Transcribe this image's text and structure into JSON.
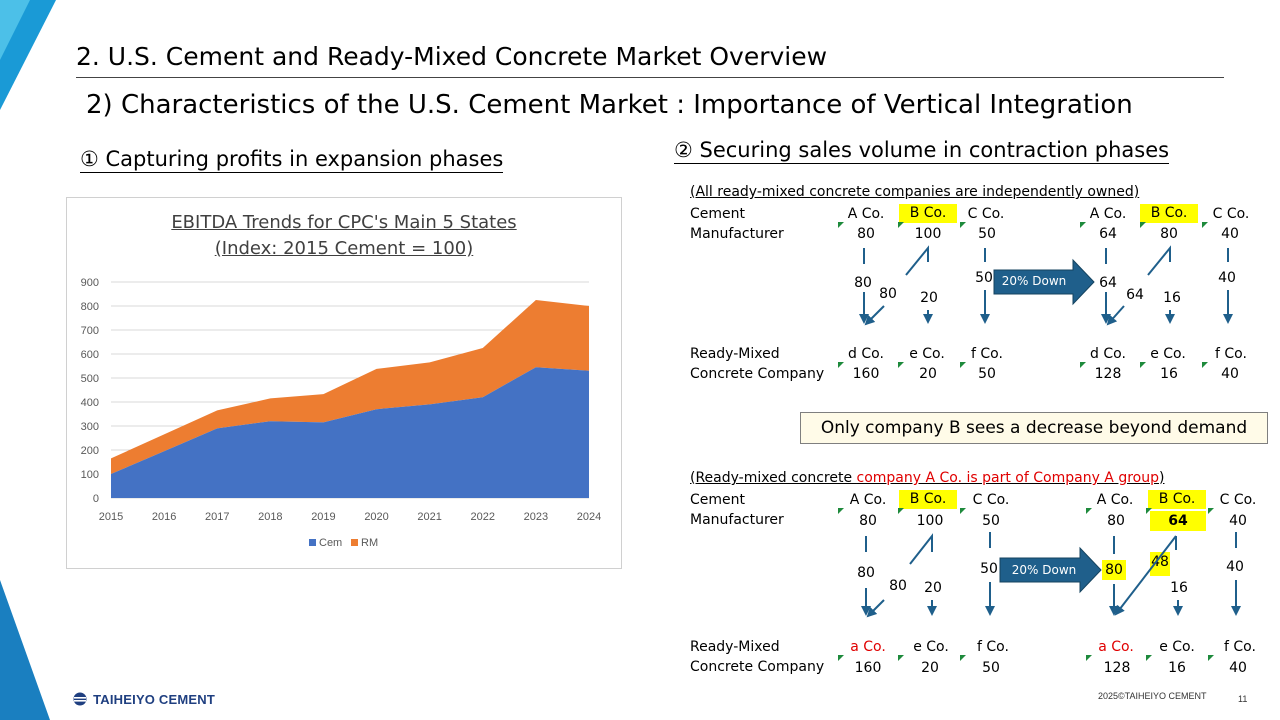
{
  "slide": {
    "title": "2. U.S. Cement and Ready-Mixed Concrete Market Overview",
    "subtitle": "2) Characteristics of the U.S. Cement Market : Importance of Vertical Integration",
    "section1": "① Capturing profits in expansion phases",
    "section2": "② Securing sales volume in contraction phases",
    "page_number": "11",
    "copyright": "2025©TAIHEIYO CEMENT",
    "logo_text": "TAIHEIYO CEMENT"
  },
  "colors": {
    "cem": "#4472c4",
    "rm": "#ed7d31",
    "arrow": "#1f5f8b",
    "highlight": "#ffff00",
    "accent_red": "#e00000"
  },
  "chart_data": {
    "type": "area",
    "title": "EBITDA Trends for CPC's Main 5 States",
    "subtitle": "(Index: 2015 Cement = 100)",
    "x": [
      "2015",
      "2016",
      "2017",
      "2018",
      "2019",
      "2020",
      "2021",
      "2022",
      "2023",
      "2024"
    ],
    "stacked": true,
    "series": [
      {
        "name": "Cem",
        "values": [
          100,
          195,
          290,
          320,
          315,
          370,
          390,
          420,
          545,
          530
        ]
      },
      {
        "name": "RM",
        "values": [
          65,
          70,
          75,
          95,
          118,
          168,
          175,
          205,
          280,
          270
        ]
      }
    ],
    "ylim": [
      0,
      900
    ],
    "yticks": [
      0,
      100,
      200,
      300,
      400,
      500,
      600,
      700,
      800,
      900
    ],
    "legend": "bottom",
    "grid": true
  },
  "diagram1": {
    "caption": "(All ready-mixed concrete companies are independently owned)",
    "cement_label_1": "Cement",
    "cement_label_2": "Manufacturer",
    "rm_label_1": "Ready-Mixed",
    "rm_label_2": "Concrete Company",
    "before": {
      "cement": [
        "A Co.",
        "B Co.",
        "C Co."
      ],
      "cement_values": [
        "80",
        "100",
        "50"
      ],
      "flows": [
        "80",
        "80",
        "20",
        "50"
      ],
      "rm": [
        "d Co.",
        "e Co.",
        "f Co."
      ],
      "rm_values": [
        "160",
        "20",
        "50"
      ]
    },
    "arrow_label": "20% Down",
    "after": {
      "cement": [
        "A Co.",
        "B Co.",
        "C Co."
      ],
      "cement_values": [
        "64",
        "80",
        "40"
      ],
      "flows": [
        "64",
        "64",
        "16",
        "40"
      ],
      "rm": [
        "d Co.",
        "e Co.",
        "f Co."
      ],
      "rm_values": [
        "128",
        "16",
        "40"
      ]
    }
  },
  "note": "Only company B sees a decrease beyond demand",
  "diagram2": {
    "caption_prefix": "(Ready-mixed concrete ",
    "caption_red": "company A Co. is part of Company A group",
    "caption_suffix": ")",
    "cement_label_1": "Cement",
    "cement_label_2": "Manufacturer",
    "rm_label_1": "Ready-Mixed",
    "rm_label_2": "Concrete Company",
    "before": {
      "cement": [
        "A Co.",
        "B Co.",
        "C Co."
      ],
      "cement_values": [
        "80",
        "100",
        "50"
      ],
      "flows": [
        "80",
        "80",
        "20",
        "50"
      ],
      "rm": [
        "a Co.",
        "e Co.",
        "f Co."
      ],
      "rm_values": [
        "160",
        "20",
        "50"
      ]
    },
    "arrow_label": "20% Down",
    "after": {
      "cement": [
        "A Co.",
        "B Co.",
        "C Co."
      ],
      "cement_values": [
        "80",
        "64",
        "40"
      ],
      "flows": [
        "80",
        "48",
        "16",
        "40"
      ],
      "rm": [
        "a Co.",
        "e Co.",
        "f Co."
      ],
      "rm_values": [
        "128",
        "16",
        "40"
      ]
    }
  }
}
